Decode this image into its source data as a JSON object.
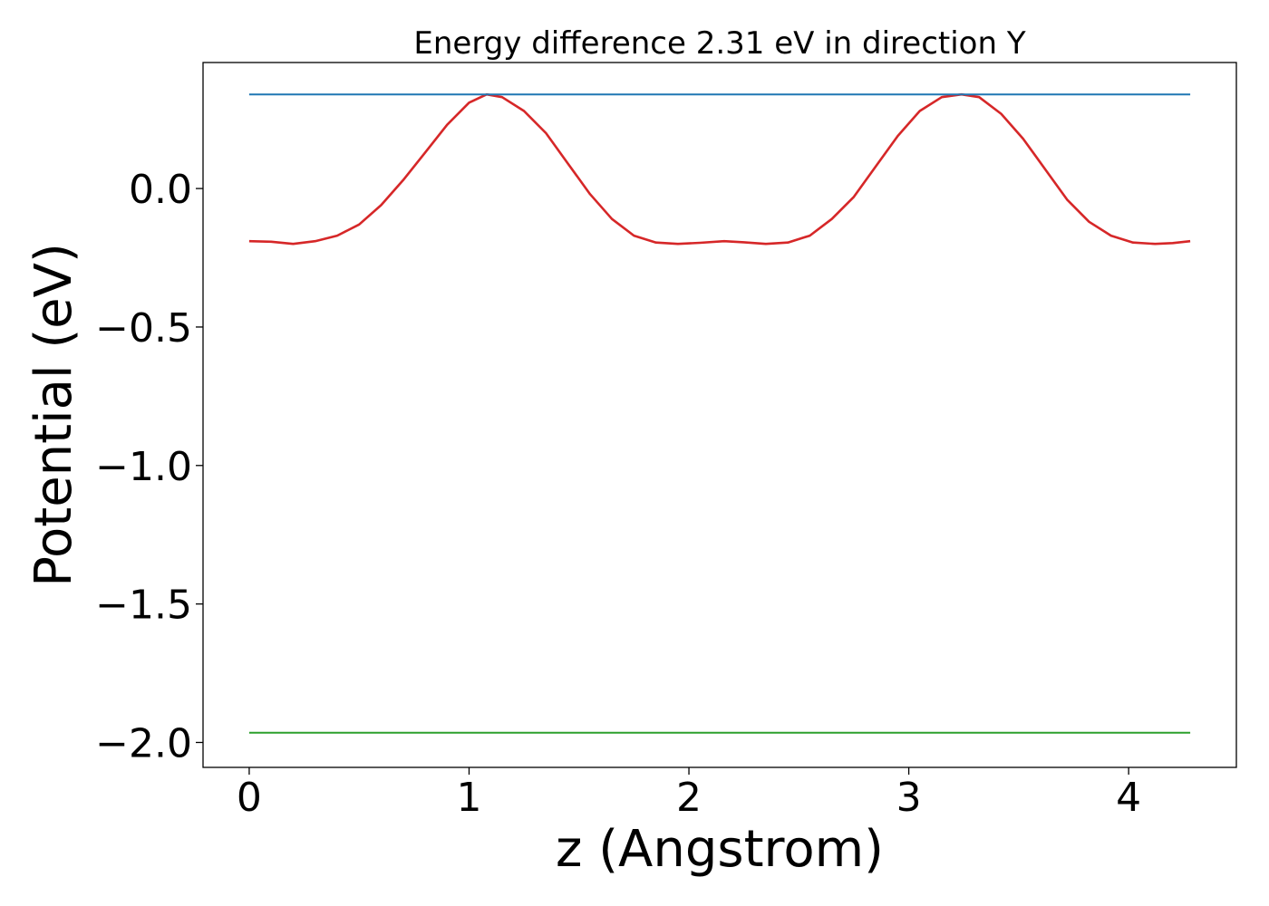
{
  "chart_data": {
    "type": "line",
    "title": "Energy difference 2.31 eV in direction Y",
    "xlabel": "z (Angstrom)",
    "ylabel": "Potential (eV)",
    "xlim": [
      -0.21,
      4.49
    ],
    "ylim": [
      -2.09,
      0.455
    ],
    "x_ticks": [
      0,
      1,
      2,
      3,
      4
    ],
    "x_tick_labels": [
      "0",
      "1",
      "2",
      "3",
      "4"
    ],
    "y_ticks": [
      0.0,
      -0.5,
      -1.0,
      -1.5,
      -2.0
    ],
    "y_tick_labels": [
      "0.0",
      "−0.5",
      "−1.0",
      "−1.5",
      "−2.0"
    ],
    "grid": false,
    "series": [
      {
        "color": "#d62728",
        "x": [
          0.0,
          0.1,
          0.2,
          0.3,
          0.4,
          0.5,
          0.6,
          0.7,
          0.8,
          0.9,
          1.0,
          1.08,
          1.15,
          1.25,
          1.35,
          1.45,
          1.55,
          1.65,
          1.75,
          1.85,
          1.95,
          2.05,
          2.16,
          2.25,
          2.35,
          2.45,
          2.55,
          2.65,
          2.75,
          2.85,
          2.95,
          3.05,
          3.15,
          3.24,
          3.32,
          3.42,
          3.52,
          3.62,
          3.72,
          3.82,
          3.92,
          4.02,
          4.12,
          4.2,
          4.28
        ],
        "y": [
          -0.19,
          -0.192,
          -0.2,
          -0.19,
          -0.17,
          -0.13,
          -0.06,
          0.03,
          0.13,
          0.23,
          0.31,
          0.34,
          0.33,
          0.28,
          0.2,
          0.09,
          -0.02,
          -0.11,
          -0.17,
          -0.195,
          -0.2,
          -0.196,
          -0.19,
          -0.194,
          -0.2,
          -0.195,
          -0.17,
          -0.11,
          -0.03,
          0.08,
          0.19,
          0.28,
          0.33,
          0.34,
          0.33,
          0.27,
          0.18,
          0.07,
          -0.04,
          -0.12,
          -0.17,
          -0.195,
          -0.2,
          -0.197,
          -0.19
        ]
      },
      {
        "color": "#1f77b4",
        "x": [
          0.0,
          4.28
        ],
        "y": [
          0.34,
          0.34
        ]
      },
      {
        "color": "#2ca02c",
        "x": [
          0.0,
          4.28
        ],
        "y": [
          -1.965,
          -1.965
        ]
      }
    ]
  }
}
